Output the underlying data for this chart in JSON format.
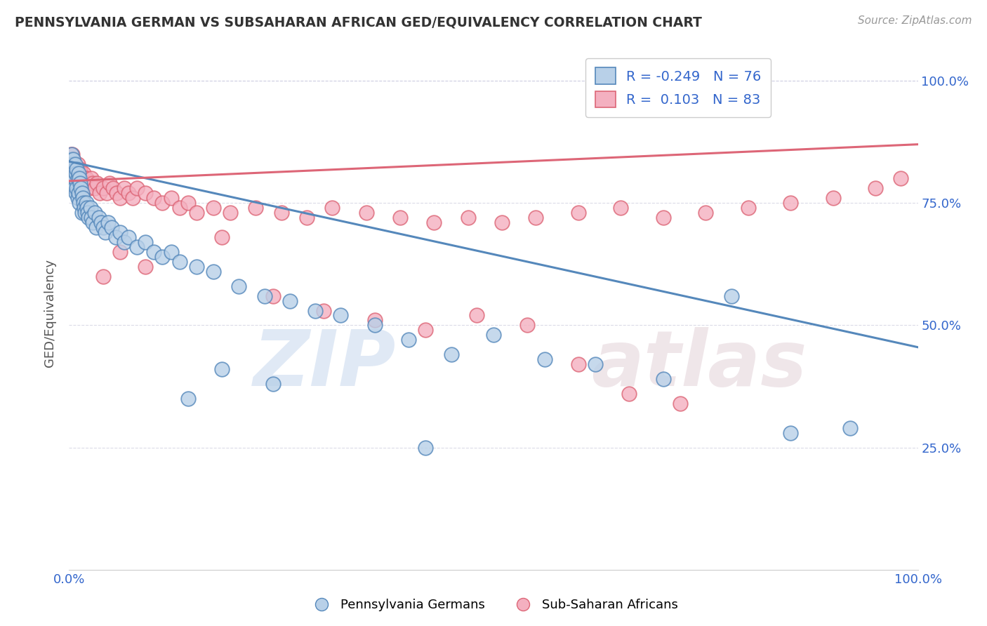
{
  "title": "PENNSYLVANIA GERMAN VS SUBSAHARAN AFRICAN GED/EQUIVALENCY CORRELATION CHART",
  "source": "Source: ZipAtlas.com",
  "ylabel": "GED/Equivalency",
  "xlim": [
    0.0,
    1.0
  ],
  "ylim": [
    0.0,
    1.05
  ],
  "blue_R": -0.249,
  "blue_N": 76,
  "pink_R": 0.103,
  "pink_N": 83,
  "blue_color": "#b8d0e8",
  "pink_color": "#f4b0c0",
  "blue_line_color": "#5588bb",
  "pink_line_color": "#dd6677",
  "legend_blue_label": "Pennsylvania Germans",
  "legend_pink_label": "Sub-Saharan Africans",
  "blue_trend_start_y": 0.835,
  "blue_trend_end_y": 0.455,
  "pink_trend_start_y": 0.795,
  "pink_trend_end_y": 0.87,
  "blue_x": [
    0.001,
    0.002,
    0.003,
    0.003,
    0.004,
    0.004,
    0.005,
    0.005,
    0.006,
    0.006,
    0.007,
    0.007,
    0.008,
    0.008,
    0.009,
    0.009,
    0.01,
    0.01,
    0.011,
    0.011,
    0.012,
    0.012,
    0.013,
    0.014,
    0.015,
    0.015,
    0.016,
    0.017,
    0.018,
    0.019,
    0.02,
    0.021,
    0.022,
    0.023,
    0.025,
    0.026,
    0.028,
    0.03,
    0.032,
    0.035,
    0.038,
    0.04,
    0.043,
    0.046,
    0.05,
    0.055,
    0.06,
    0.065,
    0.07,
    0.08,
    0.09,
    0.1,
    0.11,
    0.12,
    0.13,
    0.15,
    0.17,
    0.2,
    0.23,
    0.26,
    0.29,
    0.32,
    0.36,
    0.4,
    0.45,
    0.5,
    0.56,
    0.62,
    0.7,
    0.78,
    0.85,
    0.92,
    0.24,
    0.18,
    0.14,
    0.42
  ],
  "blue_y": [
    0.84,
    0.82,
    0.85,
    0.8,
    0.83,
    0.81,
    0.84,
    0.79,
    0.82,
    0.78,
    0.83,
    0.8,
    0.81,
    0.77,
    0.82,
    0.78,
    0.8,
    0.76,
    0.81,
    0.77,
    0.8,
    0.75,
    0.79,
    0.78,
    0.77,
    0.73,
    0.76,
    0.75,
    0.74,
    0.73,
    0.75,
    0.74,
    0.73,
    0.72,
    0.74,
    0.72,
    0.71,
    0.73,
    0.7,
    0.72,
    0.71,
    0.7,
    0.69,
    0.71,
    0.7,
    0.68,
    0.69,
    0.67,
    0.68,
    0.66,
    0.67,
    0.65,
    0.64,
    0.65,
    0.63,
    0.62,
    0.61,
    0.58,
    0.56,
    0.55,
    0.53,
    0.52,
    0.5,
    0.47,
    0.44,
    0.48,
    0.43,
    0.42,
    0.39,
    0.56,
    0.28,
    0.29,
    0.38,
    0.41,
    0.35,
    0.25
  ],
  "pink_x": [
    0.001,
    0.002,
    0.003,
    0.003,
    0.004,
    0.004,
    0.005,
    0.005,
    0.006,
    0.006,
    0.007,
    0.008,
    0.009,
    0.01,
    0.01,
    0.011,
    0.012,
    0.013,
    0.014,
    0.015,
    0.016,
    0.017,
    0.018,
    0.019,
    0.02,
    0.022,
    0.024,
    0.026,
    0.028,
    0.03,
    0.033,
    0.036,
    0.04,
    0.044,
    0.048,
    0.052,
    0.056,
    0.06,
    0.065,
    0.07,
    0.075,
    0.08,
    0.09,
    0.1,
    0.11,
    0.12,
    0.13,
    0.14,
    0.15,
    0.17,
    0.19,
    0.22,
    0.25,
    0.28,
    0.31,
    0.35,
    0.39,
    0.43,
    0.47,
    0.51,
    0.55,
    0.6,
    0.65,
    0.7,
    0.75,
    0.8,
    0.85,
    0.9,
    0.95,
    0.98,
    0.18,
    0.24,
    0.3,
    0.36,
    0.42,
    0.48,
    0.54,
    0.6,
    0.66,
    0.72,
    0.04,
    0.06,
    0.09
  ],
  "pink_y": [
    0.84,
    0.85,
    0.84,
    0.83,
    0.85,
    0.82,
    0.84,
    0.8,
    0.83,
    0.81,
    0.82,
    0.81,
    0.82,
    0.8,
    0.83,
    0.81,
    0.8,
    0.82,
    0.81,
    0.8,
    0.79,
    0.81,
    0.8,
    0.79,
    0.8,
    0.79,
    0.78,
    0.8,
    0.79,
    0.78,
    0.79,
    0.77,
    0.78,
    0.77,
    0.79,
    0.78,
    0.77,
    0.76,
    0.78,
    0.77,
    0.76,
    0.78,
    0.77,
    0.76,
    0.75,
    0.76,
    0.74,
    0.75,
    0.73,
    0.74,
    0.73,
    0.74,
    0.73,
    0.72,
    0.74,
    0.73,
    0.72,
    0.71,
    0.72,
    0.71,
    0.72,
    0.73,
    0.74,
    0.72,
    0.73,
    0.74,
    0.75,
    0.76,
    0.78,
    0.8,
    0.68,
    0.56,
    0.53,
    0.51,
    0.49,
    0.52,
    0.5,
    0.42,
    0.36,
    0.34,
    0.6,
    0.65,
    0.62
  ]
}
